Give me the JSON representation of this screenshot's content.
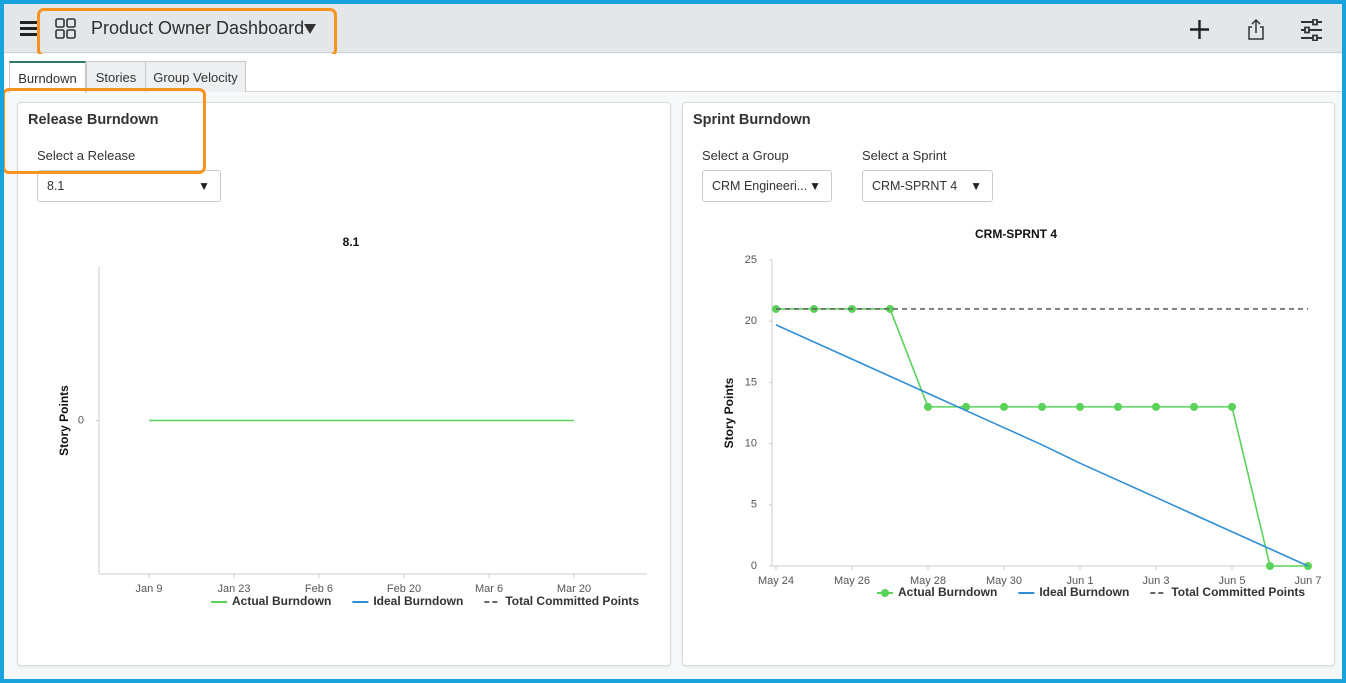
{
  "header": {
    "title": "Product Owner Dashboard"
  },
  "tabs": [
    "Burndown",
    "Stories",
    "Group Velocity"
  ],
  "panels": [
    {
      "title": "Release Burndown",
      "filters": [
        {
          "label": "Select a Release",
          "value": "8.1"
        }
      ],
      "chart_data": {
        "type": "line",
        "title": "8.1",
        "y_label": "Story Points",
        "categories": [
          "Jan 9",
          "Jan 23",
          "Feb 6",
          "Feb 20",
          "Mar 6",
          "Mar 20"
        ],
        "series": [
          {
            "name": "Actual Burndown",
            "color": "#5ad25a",
            "markers": false,
            "values": [
              0,
              0,
              0,
              0,
              0,
              0
            ]
          },
          {
            "name": "Ideal Burndown",
            "color": "#2f8fd8",
            "values": [
              null,
              null,
              null,
              null,
              null,
              null
            ]
          },
          {
            "name": "Total Committed Points",
            "color": "#666666",
            "dash": true,
            "values": [
              null,
              null,
              null,
              null,
              null,
              null
            ]
          }
        ],
        "ylim": [
          -1,
          1
        ],
        "yticks": [
          0
        ]
      }
    },
    {
      "title": "Sprint Burndown",
      "filters": [
        {
          "label": "Select a Group",
          "value": "CRM Engineeri..."
        },
        {
          "label": "Select a Sprint",
          "value": "CRM-SPRNT 4"
        }
      ],
      "chart_data": {
        "type": "line",
        "title": "CRM-SPRNT 4",
        "y_label": "Story Points",
        "categories": [
          "May 24",
          null,
          "May 26",
          null,
          "May 28",
          null,
          "May 30",
          null,
          "Jun 1",
          null,
          "Jun 3",
          null,
          "Jun 5",
          null,
          "Jun 7"
        ],
        "series": [
          {
            "name": "Actual Burndown",
            "color": "#5ad25a",
            "markers": true,
            "values": [
              21,
              21,
              21,
              21,
              13,
              13,
              13,
              13,
              13,
              13,
              13,
              13,
              13,
              0,
              0
            ]
          },
          {
            "name": "Ideal Burndown",
            "color": "#2f8fd8",
            "values": [
              19.7,
              18.3,
              16.9,
              15.5,
              14.1,
              12.7,
              11.3,
              9.9,
              8.4,
              7.0,
              5.6,
              4.2,
              2.8,
              1.4,
              0
            ]
          },
          {
            "name": "Total Committed Points",
            "color": "#666666",
            "dash": true,
            "values": [
              21,
              21,
              21,
              21,
              21,
              21,
              21,
              21,
              21,
              21,
              21,
              21,
              21,
              21,
              21
            ]
          }
        ],
        "ylim": [
          0,
          25
        ],
        "yticks": [
          0,
          5,
          10,
          15,
          20,
          25
        ]
      }
    }
  ]
}
